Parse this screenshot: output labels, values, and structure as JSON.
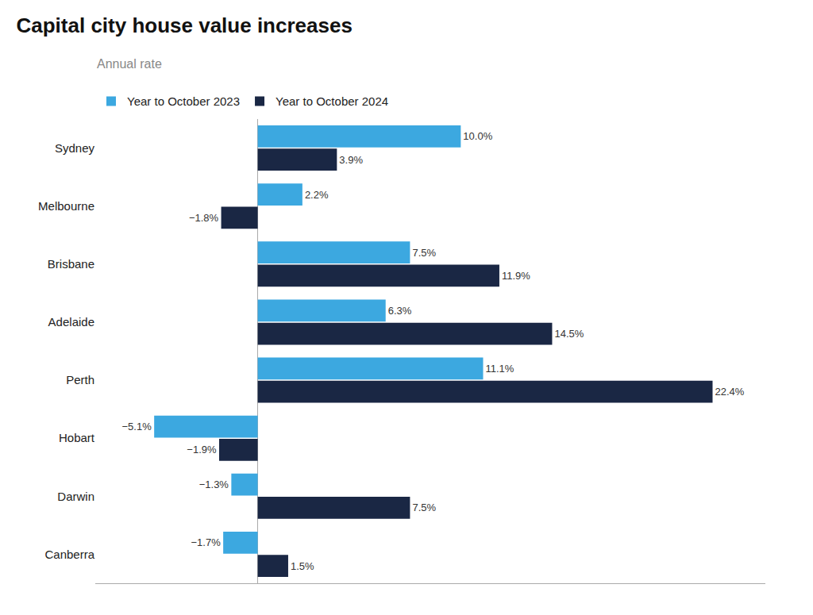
{
  "chart_data": {
    "type": "bar",
    "orientation": "horizontal",
    "title": "Capital city house value increases",
    "subtitle": "Annual rate",
    "categories": [
      "Sydney",
      "Melbourne",
      "Brisbane",
      "Adelaide",
      "Perth",
      "Hobart",
      "Darwin",
      "Canberra"
    ],
    "series": [
      {
        "name": "Year to October 2023",
        "color": "#3ca8e0",
        "values": [
          10.0,
          2.2,
          7.5,
          6.3,
          11.1,
          -5.1,
          -1.3,
          -1.7
        ],
        "value_labels": [
          "10.0%",
          "2.2%",
          "7.5%",
          "6.3%",
          "11.1%",
          "−5.1%",
          "−1.3%",
          "−1.7%"
        ]
      },
      {
        "name": "Year to October 2024",
        "color": "#1a2744",
        "values": [
          3.9,
          -1.8,
          11.9,
          14.5,
          22.4,
          -1.9,
          7.5,
          1.5
        ],
        "value_labels": [
          "3.9%",
          "−1.8%",
          "11.9%",
          "14.5%",
          "22.4%",
          "−1.9%",
          "7.5%",
          "1.5%"
        ]
      }
    ],
    "xlim": [
      -8,
      25
    ],
    "data_labels": true,
    "tick_labels": "y",
    "grid": false,
    "legend": "upper left"
  }
}
